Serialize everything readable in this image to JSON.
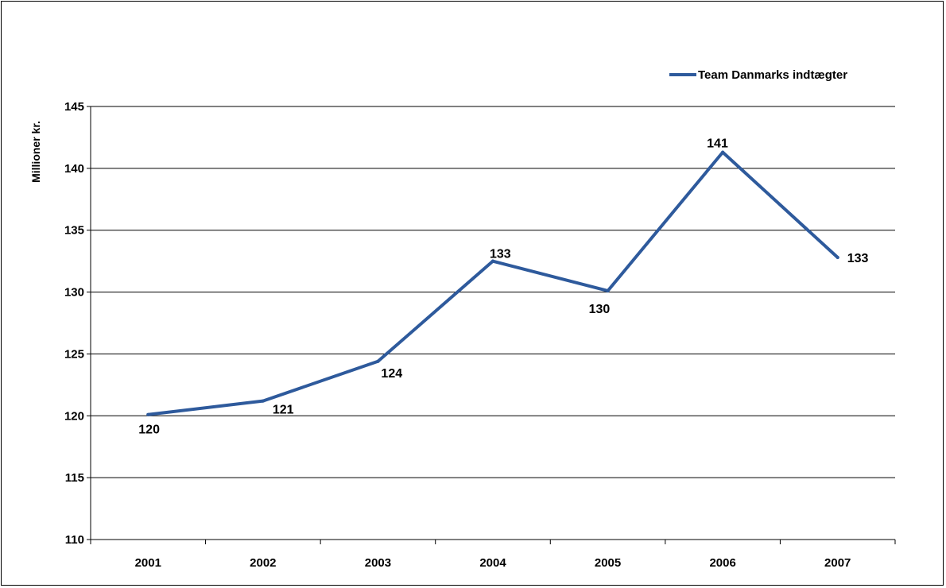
{
  "chart_data": {
    "type": "line",
    "title": "",
    "xlabel": "",
    "ylabel": "Millioner kr.",
    "categories": [
      "2001",
      "2002",
      "2003",
      "2004",
      "2005",
      "2006",
      "2007"
    ],
    "series": [
      {
        "name": "Team Danmarks indtægter",
        "values": [
          120.1,
          121.2,
          124.4,
          132.5,
          130.1,
          141.3,
          132.8
        ],
        "labels": [
          "120",
          "121",
          "124",
          "133",
          "130",
          "141",
          "133"
        ],
        "color": "#2E5A9C"
      }
    ],
    "ylim": [
      110,
      145
    ],
    "yticks": [
      110,
      115,
      120,
      125,
      130,
      135,
      140,
      145
    ],
    "ytick_labels": [
      "110",
      "115",
      "120",
      "125",
      "130",
      "135",
      "140",
      "145"
    ],
    "grid": true,
    "legend_position": "top-right"
  }
}
